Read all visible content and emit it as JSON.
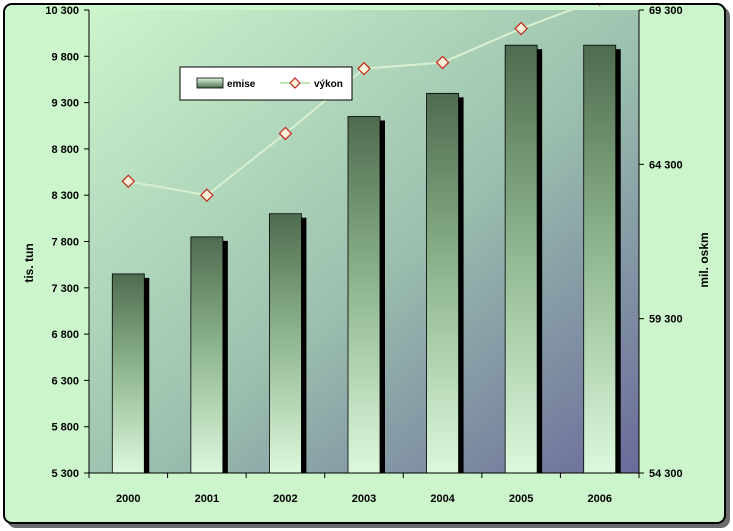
{
  "chart_data": {
    "type": "bar",
    "title": "",
    "categories": [
      "2000",
      "2001",
      "2002",
      "2003",
      "2004",
      "2005",
      "2006"
    ],
    "series": [
      {
        "name": "emise",
        "kind": "bar",
        "axis": "left",
        "values": [
          7450,
          7850,
          8100,
          9150,
          9400,
          9920,
          9920
        ]
      },
      {
        "name": "výkon",
        "kind": "line",
        "axis": "right",
        "values": [
          63750,
          63300,
          65300,
          67400,
          67600,
          68700,
          69650
        ]
      }
    ],
    "ylabel": "tis. tun",
    "y2label": "mil. oskm",
    "ylim": [
      5300,
      10300
    ],
    "y2lim": [
      54300,
      69300
    ],
    "yticks": [
      "5 300",
      "5 800",
      "6 300",
      "6 800",
      "7 300",
      "7 800",
      "8 300",
      "8 800",
      "9 300",
      "9 800",
      "10 300"
    ],
    "y2ticks": [
      "54 300",
      "59 300",
      "64 300",
      "69 300"
    ],
    "legend": {
      "position": "top-left"
    },
    "grid": false,
    "colors": {
      "bar_top": "#4f6b4f",
      "bar_bottom": "#ddf8dd",
      "line": "#d8f0d0",
      "marker_fill": "#fff2d8",
      "marker_stroke": "#c0281e"
    }
  }
}
